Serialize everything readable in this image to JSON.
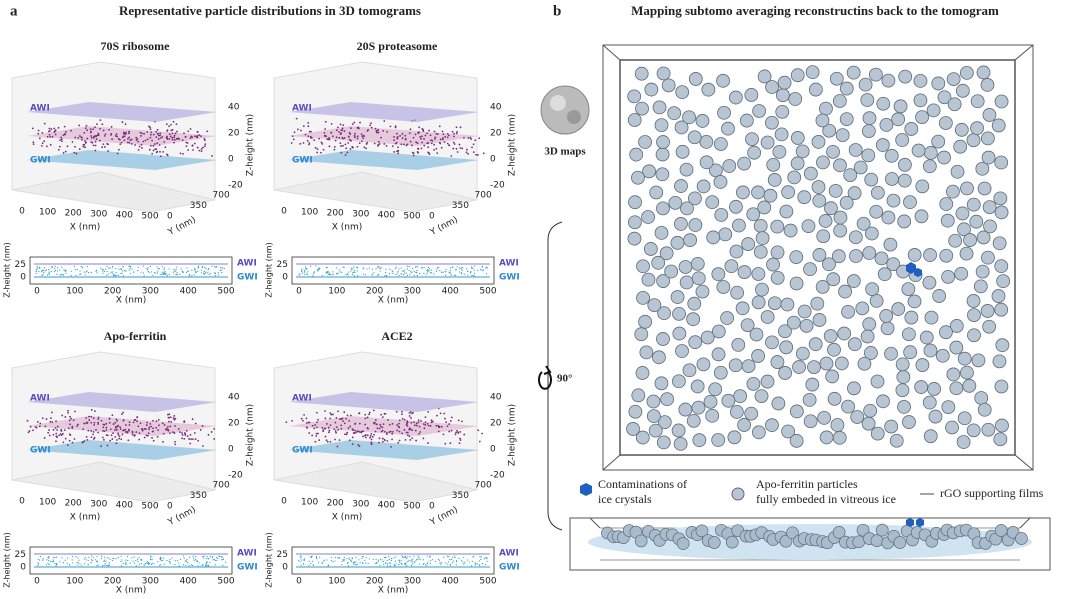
{
  "panel_a": {
    "letter": "a",
    "title": "Representative particle distributions in 3D tomograms",
    "plots": [
      {
        "name": "70S ribosome",
        "top_interface": "AWI",
        "bottom_interface": "GWI",
        "z_label": "Z-height (nm)",
        "z_ticks": [
          40,
          20,
          0,
          -20
        ],
        "x_label": "X (nm)",
        "x_ticks": [
          0,
          100,
          200,
          300,
          400,
          500
        ],
        "y_label": "Y (nm)",
        "y_ticks": [
          0,
          350,
          700
        ],
        "strip": {
          "y_label": "Z-height (nm)",
          "y_ticks": [
            25,
            0
          ],
          "x_label": "X (nm)",
          "x_ticks": [
            0,
            100,
            200,
            300,
            400,
            500
          ],
          "top_interface": "AWI",
          "bottom_interface": "GWI"
        }
      },
      {
        "name": "20S proteasome",
        "top_interface": "AWI",
        "bottom_interface": "GWI",
        "z_label": "Z-height (nm)",
        "z_ticks": [
          40,
          20,
          0,
          -20
        ],
        "x_label": "X (nm)",
        "x_ticks": [
          0,
          100,
          200,
          300,
          400,
          500
        ],
        "y_label": "Y (nm)",
        "y_ticks": [
          0,
          350,
          700
        ],
        "strip": {
          "y_label": "Z-height (nm)",
          "y_ticks": [
            25,
            0
          ],
          "x_label": "X (nm)",
          "x_ticks": [
            0,
            100,
            200,
            300,
            400,
            500
          ],
          "top_interface": "AWI",
          "bottom_interface": "GWI"
        }
      },
      {
        "name": "Apo-ferritin",
        "top_interface": "AWI",
        "bottom_interface": "GWI",
        "z_label": "Z-height (nm)",
        "z_ticks": [
          40,
          20,
          0,
          -20
        ],
        "x_label": "X (nm)",
        "x_ticks": [
          0,
          100,
          200,
          300,
          400,
          500
        ],
        "y_label": "Y (nm)",
        "y_ticks": [
          0,
          350,
          700
        ],
        "strip": {
          "y_label": "Z-height (nm)",
          "y_ticks": [
            25,
            0
          ],
          "x_label": "X (nm)",
          "x_ticks": [
            0,
            100,
            200,
            300,
            400,
            500
          ],
          "top_interface": "AWI",
          "bottom_interface": "GWI"
        }
      },
      {
        "name": "ACE2",
        "top_interface": "AWI",
        "bottom_interface": "GWI",
        "z_label": "Z-height (nm)",
        "z_ticks": [
          40,
          20,
          0,
          -20
        ],
        "x_label": "X (nm)",
        "x_ticks": [
          0,
          100,
          200,
          300,
          400,
          500
        ],
        "y_label": "Y (nm)",
        "y_ticks": [
          0,
          350,
          700
        ],
        "strip": {
          "y_label": "Z-height (nm)",
          "y_ticks": [
            25,
            0
          ],
          "x_label": "X (nm)",
          "x_ticks": [
            0,
            100,
            200,
            300,
            400,
            500
          ],
          "top_interface": "AWI",
          "bottom_interface": "GWI"
        }
      }
    ]
  },
  "panel_b": {
    "letter": "b",
    "title": "Mapping subtomo averaging reconstructins back to the tomogram",
    "map_label": "3D maps",
    "rotation": "90°",
    "legend": [
      {
        "lines": [
          "Contaminations of",
          "ice crystals"
        ]
      },
      {
        "lines": [
          "Apo-ferritin particles",
          "fully embeded in vitreous ice"
        ]
      },
      {
        "lines": [
          "rGO supporting films"
        ]
      }
    ]
  }
}
